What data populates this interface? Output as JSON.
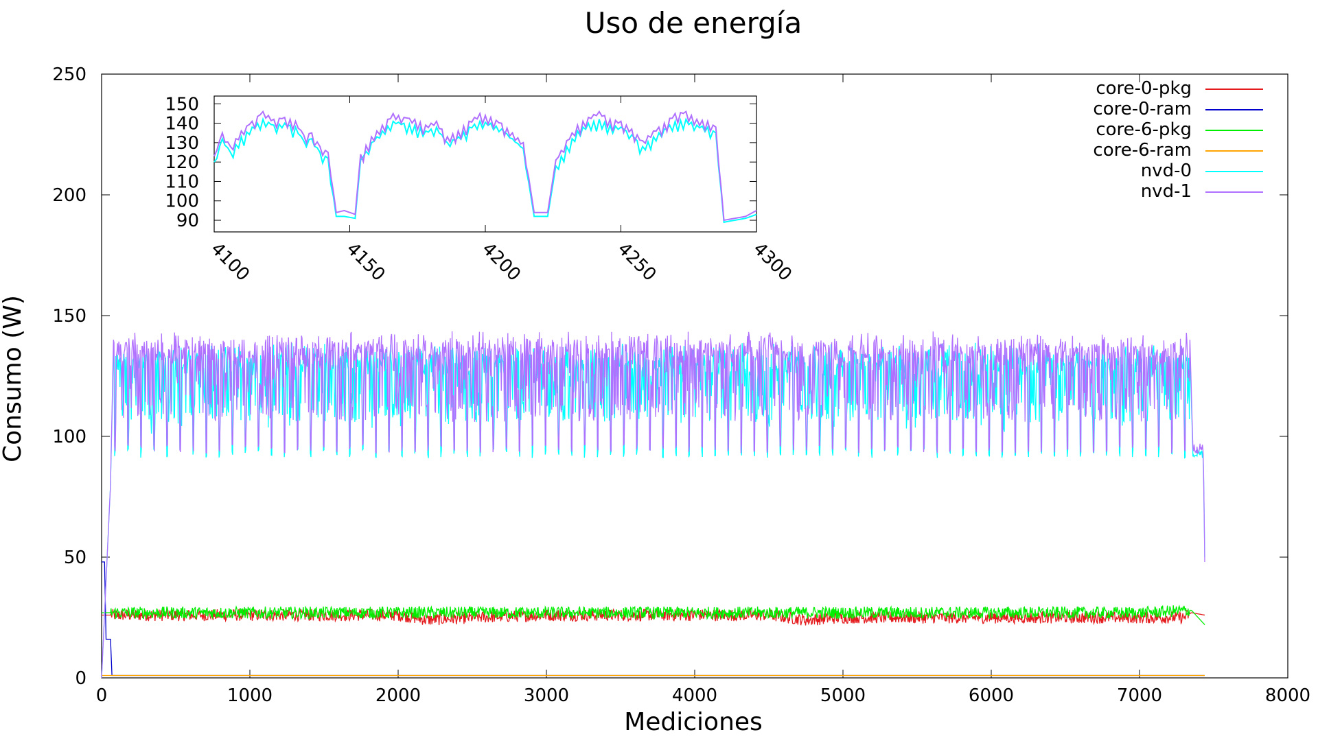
{
  "chart_data": {
    "type": "line",
    "title": "Uso de energía",
    "xlabel": "Mediciones",
    "ylabel": "Consumo (W)",
    "xlim": [
      0,
      8000
    ],
    "ylim": [
      0,
      250
    ],
    "xticks": [
      0,
      1000,
      2000,
      3000,
      4000,
      5000,
      6000,
      7000,
      8000
    ],
    "yticks": [
      0,
      50,
      100,
      150,
      200,
      250
    ],
    "grid": false,
    "legend_position": "top-right",
    "series": [
      {
        "name": "core-0-pkg",
        "color": "#e41a1c",
        "x": [
          0,
          60,
          500,
          1000,
          1500,
          2000,
          2200,
          2500,
          3000,
          3500,
          4000,
          4500,
          4750,
          5000,
          5500,
          6000,
          6500,
          7000,
          7300,
          7350,
          7440
        ],
        "y": [
          26,
          26,
          26,
          26,
          26,
          26,
          24,
          25,
          26,
          26,
          26,
          26,
          24,
          25,
          25,
          25,
          25,
          25,
          25,
          27,
          26
        ]
      },
      {
        "name": "core-0-ram",
        "color": "#0000cc",
        "x": [
          0,
          20,
          30,
          60,
          70,
          7440
        ],
        "y": [
          48,
          48,
          16,
          16,
          1,
          1
        ]
      },
      {
        "name": "core-6-pkg",
        "color": "#00ee00",
        "x": [
          0,
          60,
          500,
          1000,
          1500,
          2000,
          2500,
          3000,
          3500,
          4000,
          4500,
          5000,
          5500,
          6000,
          6500,
          7000,
          7350,
          7440
        ],
        "y": [
          27,
          27,
          27,
          27,
          27,
          27,
          27,
          27,
          27,
          27,
          27,
          27,
          27,
          27,
          27,
          27,
          28,
          22
        ]
      },
      {
        "name": "core-6-ram",
        "color": "#ffa500",
        "x": [
          0,
          7440
        ],
        "y": [
          1,
          1
        ]
      },
      {
        "name": "nvd-0",
        "color": "#00ffff",
        "x": [
          0,
          60,
          80,
          7340,
          7360,
          7430,
          7440
        ],
        "y": [
          0,
          80,
          135,
          135,
          93,
          93,
          50
        ]
      },
      {
        "name": "nvd-1",
        "color": "#b070ff",
        "x": [
          0,
          60,
          80,
          7340,
          7360,
          7430,
          7440
        ],
        "y": [
          0,
          80,
          140,
          140,
          95,
          95,
          48
        ]
      }
    ],
    "inset": {
      "xlim": [
        4100,
        4300
      ],
      "ylim": [
        84,
        154
      ],
      "xticks": [
        4100,
        4150,
        4200,
        4250,
        4300
      ],
      "yticks": [
        90,
        100,
        110,
        120,
        130,
        140,
        150
      ],
      "series": [
        {
          "name": "nvd-0",
          "color": "#00ffff",
          "x": [
            4100,
            4103,
            4106,
            4110,
            4114,
            4118,
            4122,
            4126,
            4130,
            4133,
            4136,
            4139,
            4142,
            4145,
            4148,
            4152,
            4154,
            4158,
            4162,
            4166,
            4170,
            4174,
            4178,
            4182,
            4186,
            4190,
            4194,
            4198,
            4202,
            4206,
            4210,
            4214,
            4218,
            4220,
            4223,
            4226,
            4230,
            4234,
            4238,
            4242,
            4246,
            4250,
            4254,
            4258,
            4262,
            4266,
            4270,
            4274,
            4278,
            4282,
            4285,
            4288,
            4292,
            4296,
            4300
          ],
          "y": [
            120,
            132,
            125,
            133,
            138,
            142,
            139,
            140,
            138,
            131,
            132,
            125,
            122,
            92,
            92,
            91,
            121,
            130,
            136,
            141,
            140,
            139,
            136,
            138,
            130,
            133,
            138,
            141,
            140,
            137,
            132,
            127,
            92,
            92,
            92,
            118,
            128,
            136,
            140,
            142,
            139,
            138,
            134,
            128,
            133,
            137,
            141,
            142,
            139,
            138,
            135,
            89,
            90,
            91,
            93
          ]
        },
        {
          "name": "nvd-1",
          "color": "#b070ff",
          "x": [
            4100,
            4103,
            4106,
            4110,
            4114,
            4118,
            4122,
            4126,
            4130,
            4133,
            4136,
            4139,
            4142,
            4145,
            4148,
            4152,
            4154,
            4158,
            4162,
            4166,
            4170,
            4174,
            4178,
            4182,
            4186,
            4190,
            4194,
            4198,
            4202,
            4206,
            4210,
            4214,
            4218,
            4220,
            4223,
            4226,
            4230,
            4234,
            4238,
            4242,
            4246,
            4250,
            4254,
            4258,
            4262,
            4266,
            4270,
            4274,
            4278,
            4282,
            4285,
            4288,
            4292,
            4296,
            4300
          ],
          "y": [
            123,
            135,
            128,
            136,
            141,
            146,
            142,
            143,
            141,
            134,
            135,
            128,
            125,
            94,
            95,
            93,
            124,
            133,
            139,
            145,
            143,
            142,
            139,
            141,
            133,
            136,
            141,
            145,
            143,
            140,
            135,
            130,
            94,
            94,
            94,
            121,
            131,
            139,
            143,
            146,
            142,
            141,
            137,
            131,
            136,
            140,
            145,
            146,
            142,
            141,
            138,
            90,
            91,
            92,
            95
          ]
        }
      ]
    }
  }
}
